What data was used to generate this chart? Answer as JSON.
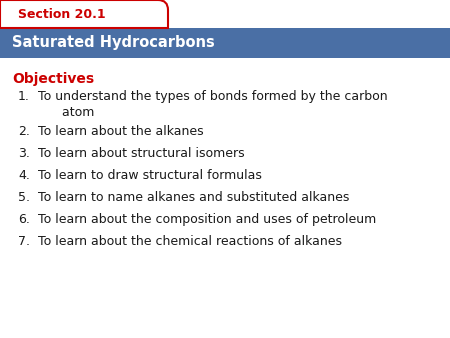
{
  "section_label": "Section 20.1",
  "title": "Saturated Hydrocarbons",
  "objectives_label": "Objectives",
  "objectives": [
    "To understand the types of bonds formed by the carbon\n      atom",
    "To learn about the alkanes",
    "To learn about structural isomers",
    "To learn to draw structural formulas",
    "To learn to name alkanes and substituted alkanes",
    "To learn about the composition and uses of petroleum",
    "To learn about the chemical reactions of alkanes"
  ],
  "bg_color": "#ffffff",
  "header_bg": "#4a6fa5",
  "tab_bg": "#ffffff",
  "tab_border": "#cc0000",
  "green_rect_color": "#5aaa5a",
  "section_text_color": "#cc0000",
  "title_text_color": "#ffffff",
  "objectives_color": "#cc0000",
  "body_text_color": "#1a1a1a",
  "fig_w": 4.5,
  "fig_h": 3.38,
  "dpi": 100
}
